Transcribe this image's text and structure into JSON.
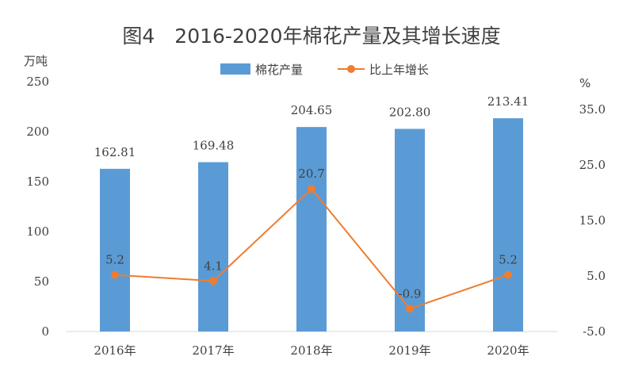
{
  "chart_data": {
    "type": "bar",
    "title": "图4　2016-2020年棉花产量及其增长速度",
    "categories": [
      "2016年",
      "2017年",
      "2018年",
      "2019年",
      "2020年"
    ],
    "series": [
      {
        "name": "棉花产量",
        "type": "bar",
        "axis": "left",
        "color": "#5B9BD5",
        "values": [
          162.81,
          169.48,
          204.65,
          202.8,
          213.41
        ],
        "labels": [
          "162.81",
          "169.48",
          "204.65",
          "202.80",
          "213.41"
        ]
      },
      {
        "name": "比上年增长",
        "type": "line",
        "axis": "right",
        "color": "#ED7D31",
        "values": [
          5.2,
          4.1,
          20.7,
          -0.9,
          5.2
        ],
        "labels": [
          "5.2",
          "4.1",
          "20.7",
          "-0.9",
          "5.2"
        ]
      }
    ],
    "y_left": {
      "unit": "万吨",
      "ylim": [
        0,
        250
      ],
      "ticks": [
        "0",
        "50",
        "100",
        "150",
        "200",
        "250"
      ]
    },
    "y_right": {
      "unit": "%",
      "ylim": [
        -5,
        35
      ],
      "ticks": [
        "-5.0",
        "5.0",
        "15.0",
        "25.0",
        "35.0"
      ]
    },
    "grid": false,
    "legend": "top-center"
  }
}
